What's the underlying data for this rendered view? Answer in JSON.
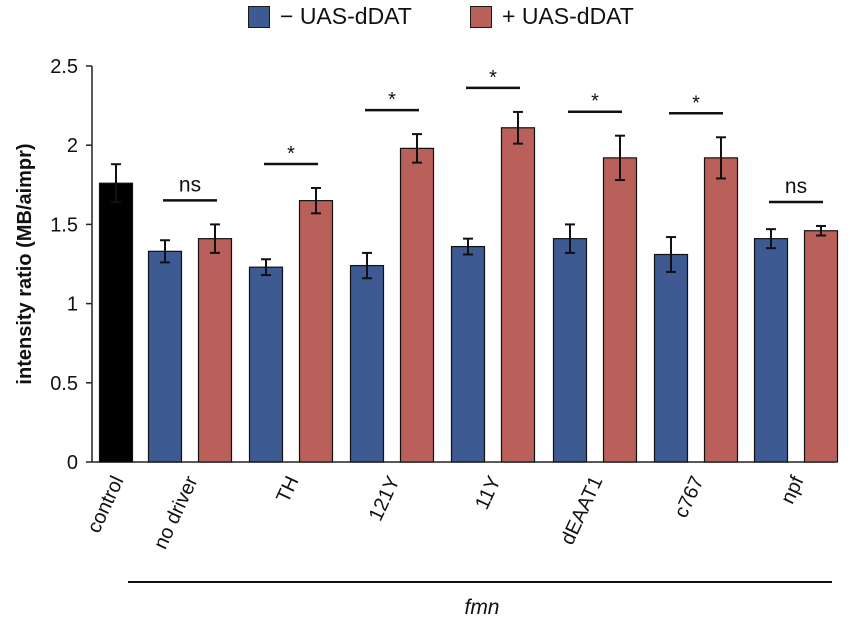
{
  "chart_data": {
    "type": "bar",
    "title": "",
    "xlabel": "fmn",
    "ylabel": "intensity ratio (MB/aimpr)",
    "ylim": [
      0,
      2.5
    ],
    "yticks": [
      "0",
      "0.5",
      "1",
      "1.5",
      "2",
      "2.5"
    ],
    "ytick_values": [
      0,
      0.5,
      1,
      1.5,
      2,
      2.5
    ],
    "grid": false,
    "legend_position": "top",
    "colors": {
      "control": "#000000",
      "minus": "#3d5a92",
      "plus": "#b9605b"
    },
    "control": {
      "label": "control",
      "value": 1.76,
      "error": 0.12
    },
    "categories": [
      "no driver",
      "TH",
      "121Y",
      "11Y",
      "dEAAT1",
      "c767",
      "npf"
    ],
    "series": [
      {
        "name": "− UAS-dDAT",
        "values": [
          1.33,
          1.23,
          1.24,
          1.36,
          1.41,
          1.31,
          1.41
        ],
        "errors": [
          0.07,
          0.05,
          0.08,
          0.05,
          0.09,
          0.11,
          0.06
        ]
      },
      {
        "name": "+ UAS-dDAT",
        "values": [
          1.41,
          1.65,
          1.98,
          2.11,
          1.92,
          1.92,
          1.46
        ],
        "errors": [
          0.09,
          0.08,
          0.09,
          0.1,
          0.14,
          0.13,
          0.03
        ]
      }
    ],
    "significance": [
      "ns",
      "*",
      "*",
      "*",
      "*",
      "*",
      "ns"
    ],
    "group_label": "fmn"
  }
}
